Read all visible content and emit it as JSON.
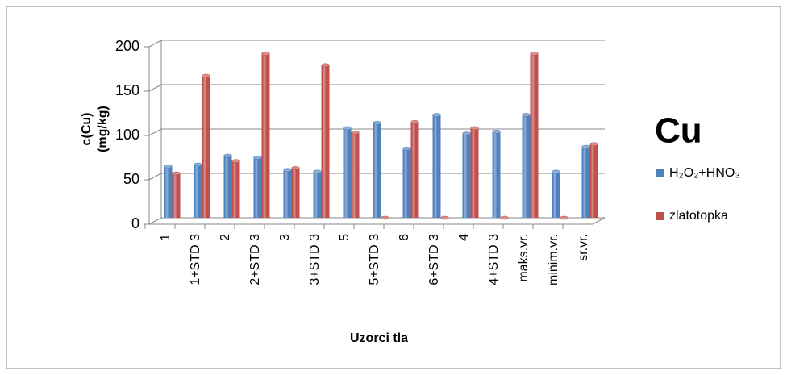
{
  "chart_data": {
    "type": "bar",
    "title": "Cu",
    "x_label": "Uzorci tla",
    "y_label": [
      "c(Cu)",
      "(mg/kg)"
    ],
    "categories": [
      "1",
      "1+STD 3",
      "2",
      "2+STD 3",
      "3",
      "3+STD 3",
      "5",
      "5+STD 3",
      "6",
      "6+STD 3",
      "4",
      "4+STD 3",
      "maks.vr.",
      "minim.vr.",
      "sr.vr."
    ],
    "series": [
      {
        "name": "H₂O₂+HNO₃",
        "color": "#4f81bd",
        "values": [
          58,
          60,
          70,
          68,
          54,
          52,
          101,
          107,
          78,
          116,
          95,
          97,
          116,
          52,
          80
        ]
      },
      {
        "name": "zlatotopka",
        "color": "#c0504d",
        "values": [
          50,
          160,
          64,
          185,
          56,
          172,
          96,
          0,
          108,
          0,
          101,
          0,
          185,
          0,
          83
        ]
      }
    ],
    "ylim": [
      0,
      200
    ],
    "yticks": [
      0,
      50,
      100,
      150,
      200
    ],
    "grid": true,
    "legend": "right"
  }
}
